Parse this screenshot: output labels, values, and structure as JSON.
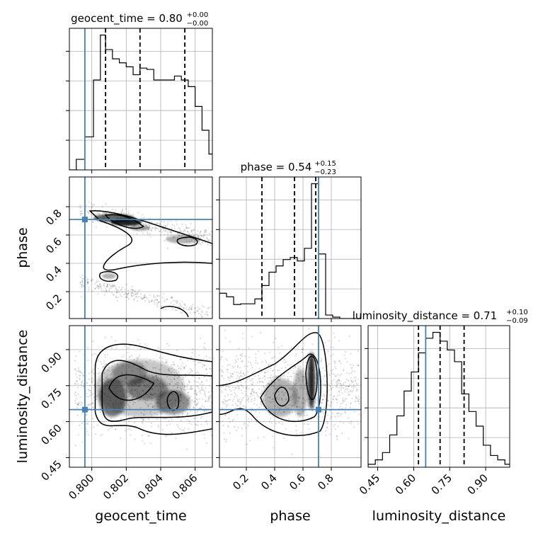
{
  "chart_data": {
    "type": "corner",
    "parameters": [
      "geocent_time",
      "phase",
      "luminosity_distance"
    ],
    "truths": {
      "geocent_time": 0.7996,
      "phase": 0.71,
      "luminosity_distance": 0.65
    },
    "truth_color": "#4682b4",
    "axes": {
      "geocent_time": {
        "range": [
          0.7987,
          0.807
        ],
        "ticks": [
          0.8,
          0.802,
          0.804,
          0.806
        ],
        "tick_labels": [
          "0.800",
          "0.802",
          "0.804",
          "0.806"
        ]
      },
      "phase": {
        "range": [
          0.01,
          1.01
        ],
        "ticks": [
          0.2,
          0.4,
          0.6,
          0.8
        ],
        "tick_labels": [
          "0.2",
          "0.4",
          "0.6",
          "0.8"
        ]
      },
      "luminosity_distance": {
        "range": [
          0.41,
          1.0
        ],
        "ticks": [
          0.45,
          0.6,
          0.75,
          0.9
        ],
        "tick_labels": [
          "0.45",
          "0.60",
          "0.75",
          "0.90"
        ]
      }
    },
    "diagonal": [
      {
        "parameter": "geocent_time",
        "title_main": "geocent_time = 0.80",
        "title_plus": "+0.00",
        "title_minus": "−0.00",
        "quantiles": [
          0.8008,
          0.8028,
          0.8054
        ],
        "bin_edges": [
          0.7987,
          0.7991,
          0.7996,
          0.8001,
          0.8005,
          0.8008,
          0.8012,
          0.8016,
          0.802,
          0.8024,
          0.8028,
          0.8032,
          0.8036,
          0.804,
          0.8044,
          0.8048,
          0.8052,
          0.8056,
          0.806,
          0.8064,
          0.8068,
          0.807
        ],
        "counts": [
          0,
          0.08,
          0.25,
          0.68,
          1.02,
          0.91,
          0.84,
          0.81,
          0.78,
          0.72,
          0.77,
          0.76,
          0.68,
          0.68,
          0.68,
          0.71,
          0.68,
          0.63,
          0.48,
          0.3,
          0.12
        ]
      },
      {
        "parameter": "phase",
        "title_main": "phase = 0.54",
        "title_plus": "+0.15",
        "title_minus": "−0.23",
        "quantiles": [
          0.31,
          0.54,
          0.69
        ],
        "bin_edges": [
          0.01,
          0.06,
          0.11,
          0.16,
          0.21,
          0.26,
          0.31,
          0.36,
          0.41,
          0.46,
          0.51,
          0.56,
          0.61,
          0.66,
          0.71,
          0.76,
          0.81,
          0.86,
          0.91,
          0.96,
          1.01
        ],
        "counts": [
          0.36,
          0.31,
          0.2,
          0.21,
          0.21,
          0.28,
          0.47,
          0.66,
          0.75,
          0.84,
          0.87,
          0.82,
          1.0,
          1.92,
          0.92,
          0.05,
          0.02,
          0.0,
          0.0,
          0.0
        ]
      },
      {
        "parameter": "luminosity_distance",
        "title_main": "luminosity_distance = 0.71",
        "title_plus": "+0.10",
        "title_minus": "−0.09",
        "quantiles": [
          0.62,
          0.71,
          0.81
        ],
        "bin_edges": [
          0.41,
          0.44,
          0.47,
          0.5,
          0.53,
          0.56,
          0.59,
          0.62,
          0.65,
          0.68,
          0.71,
          0.74,
          0.77,
          0.8,
          0.83,
          0.86,
          0.89,
          0.92,
          0.95,
          0.98,
          1.0
        ],
        "counts": [
          0.02,
          0.05,
          0.1,
          0.22,
          0.35,
          0.52,
          0.65,
          0.78,
          0.88,
          0.92,
          0.86,
          0.8,
          0.72,
          0.5,
          0.38,
          0.28,
          0.15,
          0.08,
          0.05,
          0.02
        ]
      }
    ],
    "pairs": [
      {
        "x": "geocent_time",
        "y": "phase"
      },
      {
        "x": "geocent_time",
        "y": "luminosity_distance"
      },
      {
        "x": "phase",
        "y": "luminosity_distance"
      }
    ],
    "xlabels": [
      "geocent_time",
      "phase",
      "luminosity_distance"
    ],
    "ylabels": [
      "",
      "phase",
      "luminosity_distance"
    ],
    "grid": true
  }
}
